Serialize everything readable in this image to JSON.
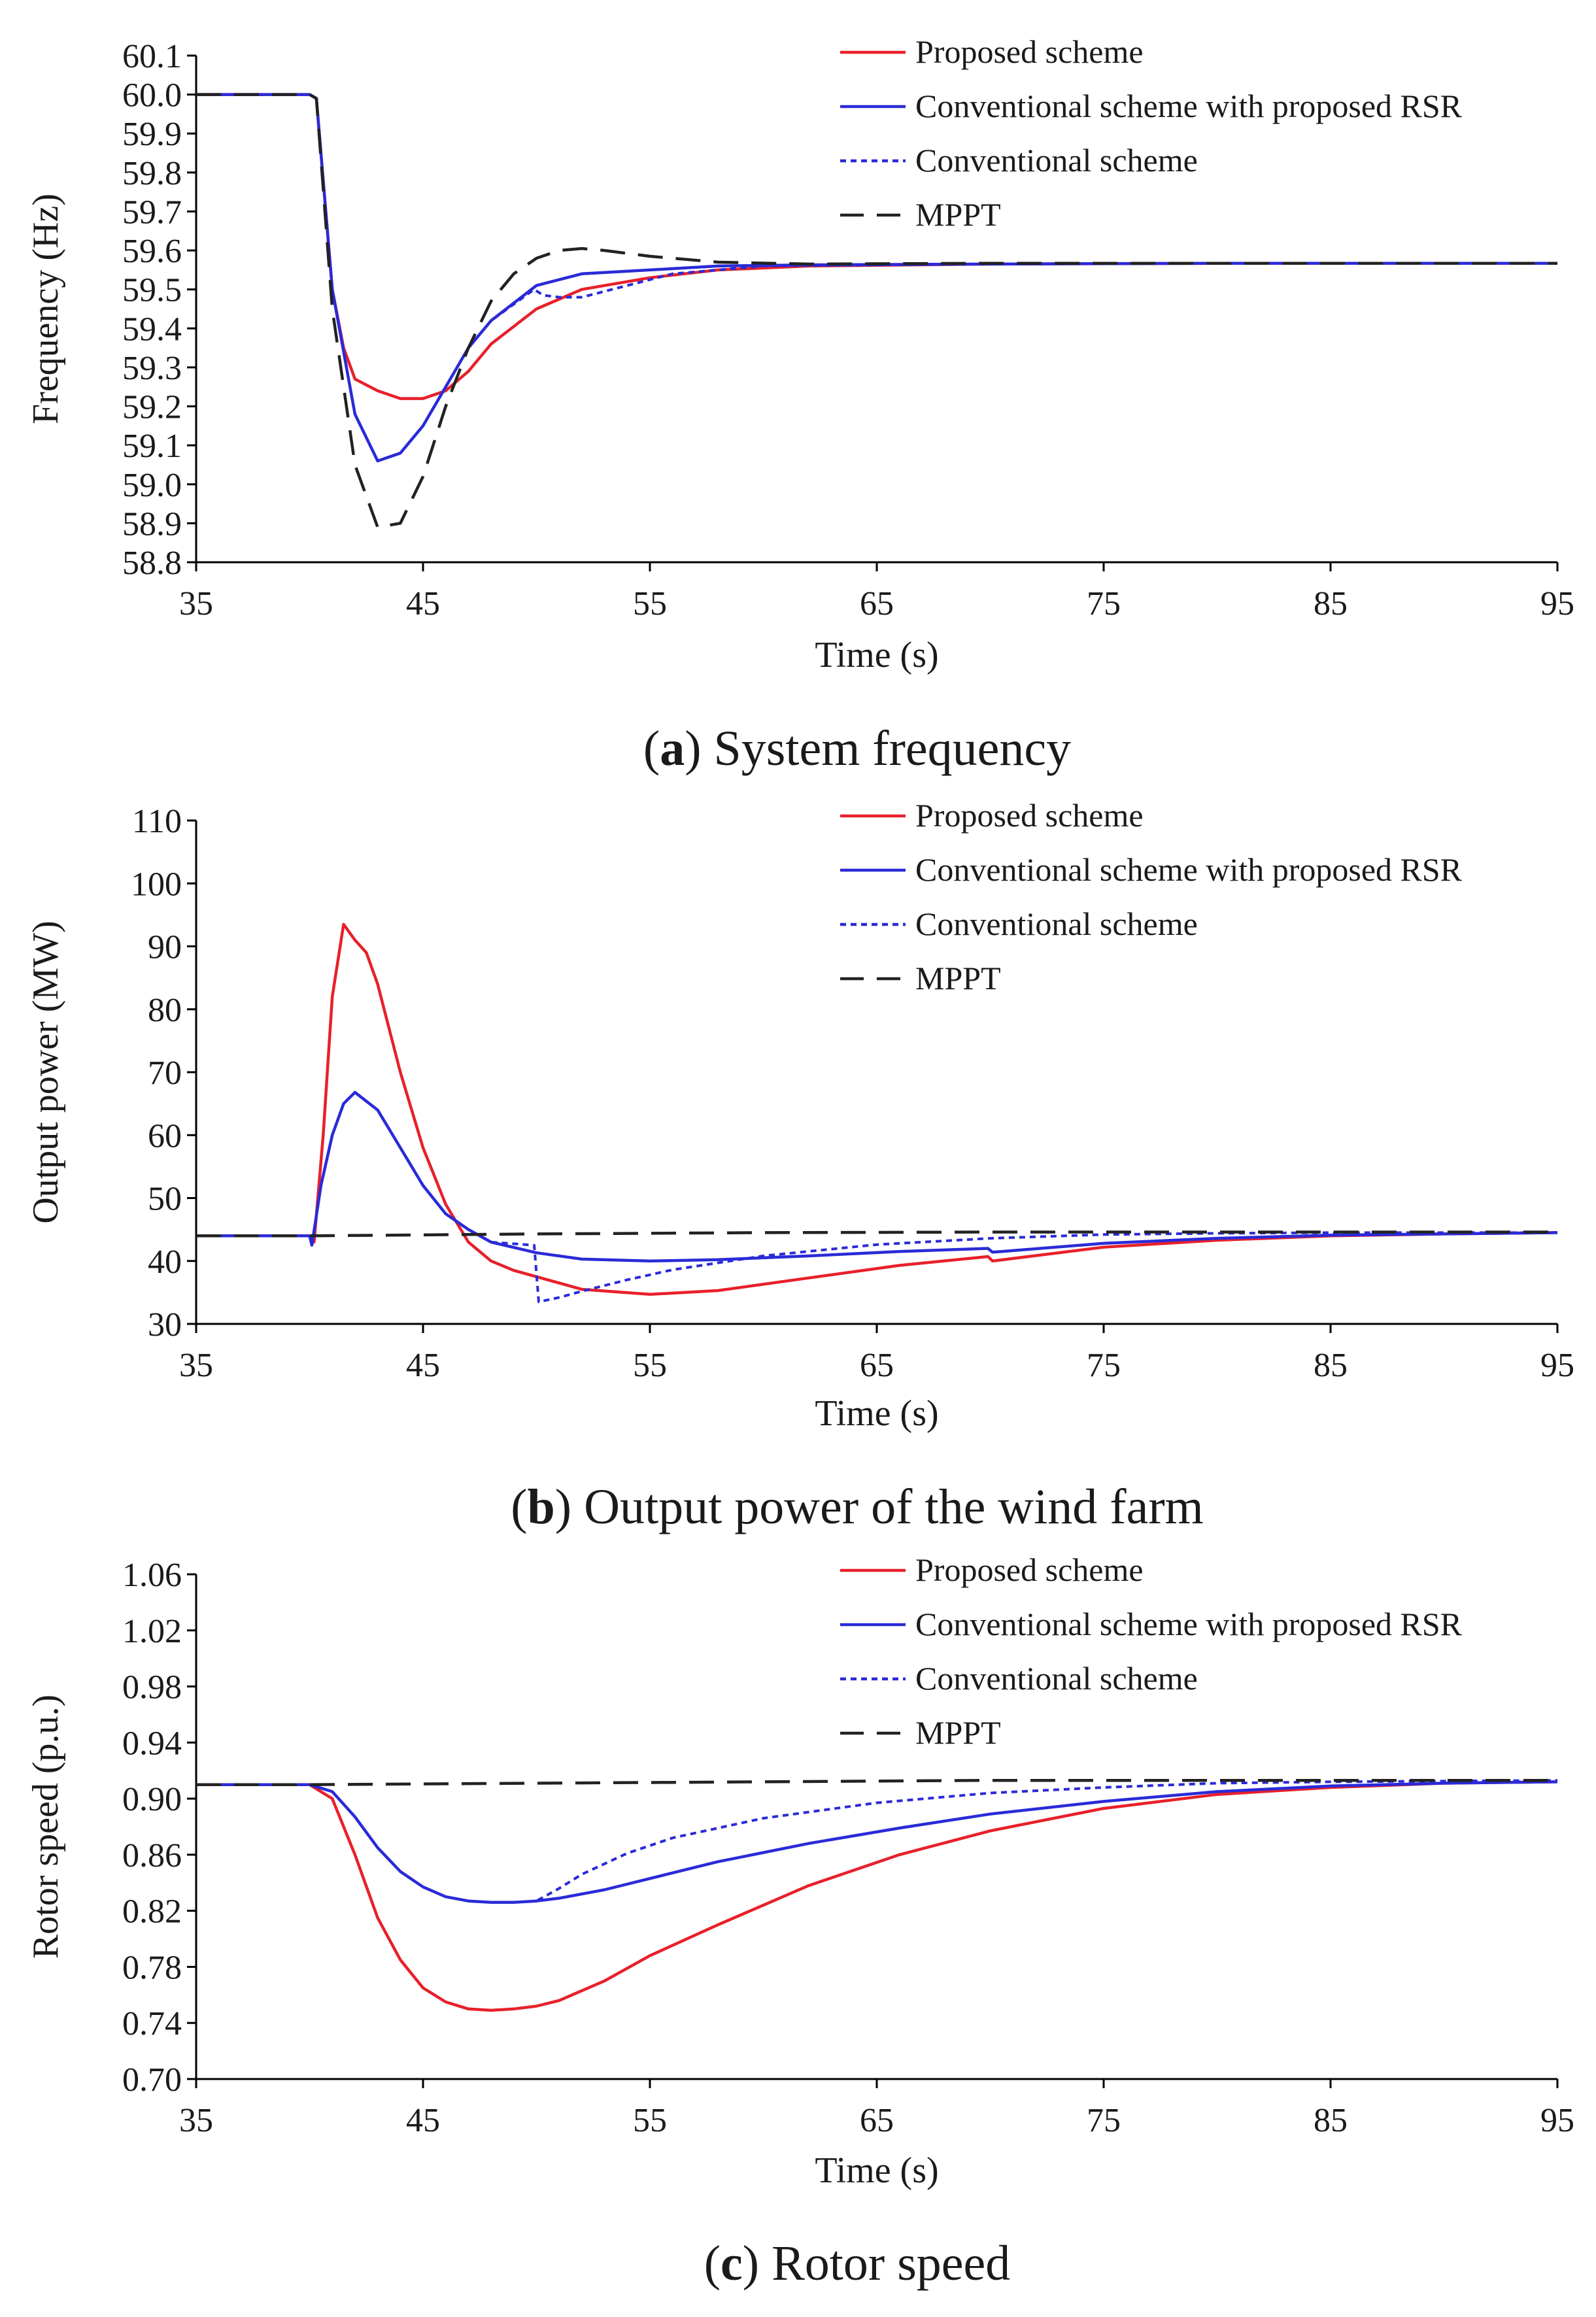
{
  "colors": {
    "proposed": "#e8202a",
    "conventional_rsr": "#2a2ad8",
    "conventional": "#2a2ad8",
    "mppt": "#222222"
  },
  "chart_data": [
    {
      "type": "line",
      "caption_letter": "a",
      "caption_text": "System frequency",
      "xlabel": "Time (s)",
      "ylabel": "Frequency (Hz)",
      "xlim": [
        35,
        95
      ],
      "ylim": [
        58.8,
        60.1
      ],
      "xticks": [
        "35",
        "45",
        "55",
        "65",
        "75",
        "85",
        "95"
      ],
      "yticks": [
        "58.8",
        "58.9",
        "59.0",
        "59.1",
        "59.2",
        "59.3",
        "59.4",
        "59.5",
        "59.6",
        "59.7",
        "59.8",
        "59.9",
        "60.0",
        "60.1"
      ],
      "legend_placement": "top-right",
      "series": [
        {
          "name": "Proposed scheme",
          "style": "solid",
          "color_key": "proposed",
          "x": [
            35,
            40,
            40.3,
            41,
            41.5,
            42,
            43,
            44,
            45,
            46,
            47,
            48,
            50,
            52,
            55,
            58,
            62,
            70,
            80,
            95
          ],
          "y": [
            60.0,
            60.0,
            59.99,
            59.5,
            59.35,
            59.27,
            59.24,
            59.22,
            59.22,
            59.24,
            59.29,
            59.36,
            59.45,
            59.5,
            59.53,
            59.55,
            59.56,
            59.565,
            59.567,
            59.567
          ]
        },
        {
          "name": "Conventional scheme with proposed RSR",
          "style": "solid",
          "color_key": "conventional_rsr",
          "x": [
            35,
            40,
            40.3,
            41,
            42,
            43,
            44,
            45,
            46,
            47,
            48,
            50,
            52,
            55,
            58,
            62,
            70,
            80,
            95
          ],
          "y": [
            60.0,
            60.0,
            59.99,
            59.5,
            59.18,
            59.06,
            59.08,
            59.15,
            59.25,
            59.35,
            59.42,
            59.51,
            59.54,
            59.55,
            59.56,
            59.563,
            59.565,
            59.567,
            59.567
          ]
        },
        {
          "name": "Conventional scheme",
          "style": "dotted",
          "color_key": "conventional",
          "x": [
            35,
            40,
            40.3,
            41,
            42,
            43,
            44,
            45,
            46,
            47,
            48,
            49.9,
            50.3,
            51,
            52,
            54,
            56,
            60,
            70,
            80,
            95
          ],
          "y": [
            60.0,
            60.0,
            59.99,
            59.5,
            59.18,
            59.06,
            59.08,
            59.15,
            59.25,
            59.35,
            59.42,
            59.5,
            59.485,
            59.48,
            59.48,
            59.51,
            59.54,
            59.56,
            59.565,
            59.567,
            59.567
          ]
        },
        {
          "name": "MPPT",
          "style": "dashed",
          "color_key": "mppt",
          "x": [
            35,
            40,
            40.3,
            41,
            42,
            43,
            44,
            45,
            46,
            47,
            48,
            49,
            50,
            51,
            52,
            53,
            55,
            58,
            62,
            70,
            95
          ],
          "y": [
            60.0,
            60.0,
            59.99,
            59.45,
            59.05,
            58.89,
            58.9,
            59.02,
            59.2,
            59.35,
            59.47,
            59.54,
            59.58,
            59.6,
            59.605,
            59.6,
            59.585,
            59.57,
            59.565,
            59.567,
            59.567
          ]
        }
      ]
    },
    {
      "type": "line",
      "caption_letter": "b",
      "caption_text": "Output power of the wind farm",
      "xlabel": "Time (s)",
      "ylabel": "Output power (MW)",
      "xlim": [
        35,
        95
      ],
      "ylim": [
        30,
        110
      ],
      "xticks": [
        "35",
        "45",
        "55",
        "65",
        "75",
        "85",
        "95"
      ],
      "yticks": [
        "30",
        "40",
        "50",
        "60",
        "70",
        "80",
        "90",
        "100",
        "110"
      ],
      "legend_placement": "top-right",
      "series": [
        {
          "name": "Proposed scheme",
          "style": "solid",
          "color_key": "proposed",
          "x": [
            35,
            40,
            40.2,
            40.6,
            41,
            41.5,
            42,
            42.5,
            43,
            44,
            45,
            46,
            47,
            48,
            49,
            50,
            52,
            55,
            58,
            62,
            66,
            69.9,
            70.1,
            75,
            80,
            85,
            90,
            95
          ],
          "y": [
            44,
            44,
            43,
            60,
            82,
            93.5,
            91,
            89,
            84,
            70,
            58,
            49,
            43,
            40,
            38.5,
            37.5,
            35.5,
            34.7,
            35.3,
            37.3,
            39.3,
            40.7,
            40,
            42.2,
            43.3,
            44,
            44.3,
            44.5
          ]
        },
        {
          "name": "Conventional scheme with proposed RSR",
          "style": "solid",
          "color_key": "conventional_rsr",
          "x": [
            35,
            40,
            40.1,
            40.5,
            41,
            41.5,
            42,
            43,
            44,
            45,
            46,
            47,
            48,
            50,
            52,
            55,
            58,
            62,
            66,
            69.9,
            70.1,
            75,
            80,
            85,
            95
          ],
          "y": [
            44,
            44,
            42.5,
            52,
            60,
            65,
            66.8,
            64,
            58,
            52,
            47.5,
            45,
            43,
            41.3,
            40.3,
            40,
            40.2,
            40.8,
            41.5,
            42,
            41.4,
            42.8,
            43.6,
            44.1,
            44.5
          ]
        },
        {
          "name": "Conventional scheme",
          "style": "dotted",
          "color_key": "conventional",
          "x": [
            35,
            40,
            40.1,
            40.5,
            41,
            41.5,
            42,
            43,
            44,
            45,
            46,
            47,
            48,
            49.9,
            50.1,
            51,
            52,
            54,
            56,
            60,
            65,
            70,
            75,
            80,
            85,
            95
          ],
          "y": [
            44,
            44,
            42.5,
            52,
            60,
            65,
            66.8,
            64,
            58,
            52,
            47.5,
            45,
            43,
            42.5,
            33.5,
            34.2,
            35.2,
            37,
            38.6,
            40.8,
            42.6,
            43.6,
            44.2,
            44.4,
            44.5,
            44.5
          ]
        },
        {
          "name": "MPPT",
          "style": "dashed",
          "color_key": "mppt",
          "x": [
            35,
            40,
            50,
            60,
            70,
            80,
            95
          ],
          "y": [
            44,
            44,
            44.3,
            44.5,
            44.6,
            44.6,
            44.6
          ]
        }
      ]
    },
    {
      "type": "line",
      "caption_letter": "c",
      "caption_text": "Rotor speed",
      "xlabel": "Time (s)",
      "ylabel": "Rotor speed (p.u.)",
      "xlim": [
        35,
        95
      ],
      "ylim": [
        0.7,
        1.06
      ],
      "xticks": [
        "35",
        "45",
        "55",
        "65",
        "75",
        "85",
        "95"
      ],
      "yticks": [
        "0.70",
        "0.74",
        "0.78",
        "0.82",
        "0.86",
        "0.90",
        "0.94",
        "0.98",
        "1.02",
        "1.06"
      ],
      "legend_placement": "top-right",
      "series": [
        {
          "name": "Proposed scheme",
          "style": "solid",
          "color_key": "proposed",
          "x": [
            35,
            40,
            41,
            42,
            43,
            44,
            45,
            46,
            47,
            48,
            49,
            50,
            51,
            53,
            55,
            58,
            62,
            66,
            70,
            75,
            80,
            85,
            90,
            95
          ],
          "y": [
            0.91,
            0.91,
            0.9,
            0.86,
            0.815,
            0.785,
            0.765,
            0.755,
            0.75,
            0.749,
            0.75,
            0.752,
            0.756,
            0.77,
            0.788,
            0.81,
            0.838,
            0.86,
            0.877,
            0.893,
            0.903,
            0.908,
            0.911,
            0.912
          ]
        },
        {
          "name": "Conventional scheme with proposed RSR",
          "style": "solid",
          "color_key": "conventional_rsr",
          "x": [
            35,
            40,
            41,
            42,
            43,
            44,
            45,
            46,
            47,
            48,
            49,
            50,
            51,
            53,
            55,
            58,
            62,
            66,
            70,
            75,
            80,
            85,
            90,
            95
          ],
          "y": [
            0.91,
            0.91,
            0.905,
            0.887,
            0.865,
            0.848,
            0.837,
            0.83,
            0.827,
            0.826,
            0.826,
            0.827,
            0.829,
            0.835,
            0.843,
            0.855,
            0.868,
            0.879,
            0.889,
            0.898,
            0.905,
            0.909,
            0.911,
            0.912
          ]
        },
        {
          "name": "Conventional scheme",
          "style": "dotted",
          "color_key": "conventional",
          "x": [
            35,
            40,
            41,
            42,
            43,
            44,
            45,
            46,
            47,
            48,
            49,
            50,
            51,
            52,
            54,
            56,
            60,
            65,
            70,
            75,
            80,
            85,
            95
          ],
          "y": [
            0.91,
            0.91,
            0.905,
            0.887,
            0.865,
            0.848,
            0.837,
            0.83,
            0.827,
            0.826,
            0.826,
            0.827,
            0.836,
            0.846,
            0.861,
            0.872,
            0.886,
            0.897,
            0.904,
            0.908,
            0.911,
            0.912,
            0.913
          ]
        },
        {
          "name": "MPPT",
          "style": "dashed",
          "color_key": "mppt",
          "x": [
            35,
            40,
            50,
            60,
            70,
            80,
            95
          ],
          "y": [
            0.91,
            0.91,
            0.911,
            0.912,
            0.913,
            0.913,
            0.913
          ]
        }
      ]
    }
  ]
}
